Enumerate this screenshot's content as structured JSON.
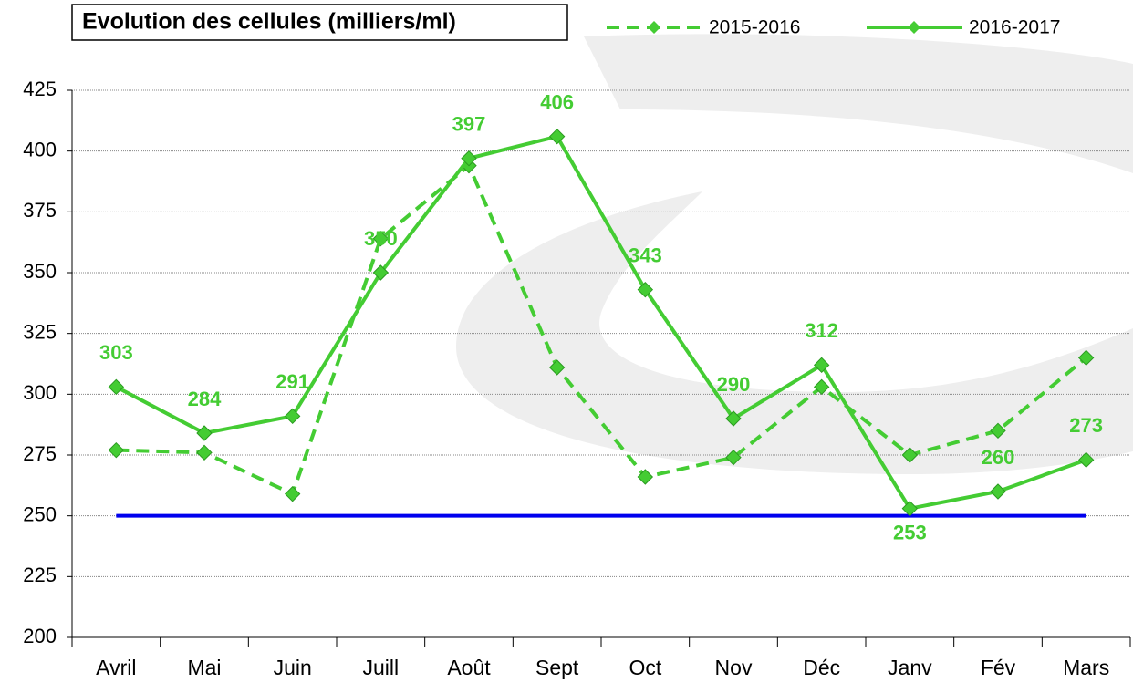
{
  "chart_data": {
    "type": "line",
    "title": "Evolution des cellules (milliers/ml)",
    "categories": [
      "Avril",
      "Mai",
      "Juin",
      "Juill",
      "Août",
      "Sept",
      "Oct",
      "Nov",
      "Déc",
      "Janv",
      "Fév",
      "Mars"
    ],
    "series": [
      {
        "name": "2015-2016",
        "color": "#44cc33",
        "dashed": true,
        "values": [
          277,
          276,
          259,
          364,
          394,
          311,
          266,
          274,
          303,
          275,
          285,
          315
        ]
      },
      {
        "name": "2016-2017",
        "color": "#44cc33",
        "dashed": false,
        "show_labels": true,
        "values": [
          303,
          284,
          291,
          350,
          397,
          406,
          343,
          290,
          312,
          253,
          260,
          273
        ]
      }
    ],
    "reference_line": {
      "value": 250,
      "color": "#0000ee"
    },
    "ylim": [
      200,
      425
    ],
    "yticks": [
      200,
      225,
      250,
      275,
      300,
      325,
      350,
      375,
      400,
      425
    ],
    "grid": true
  }
}
